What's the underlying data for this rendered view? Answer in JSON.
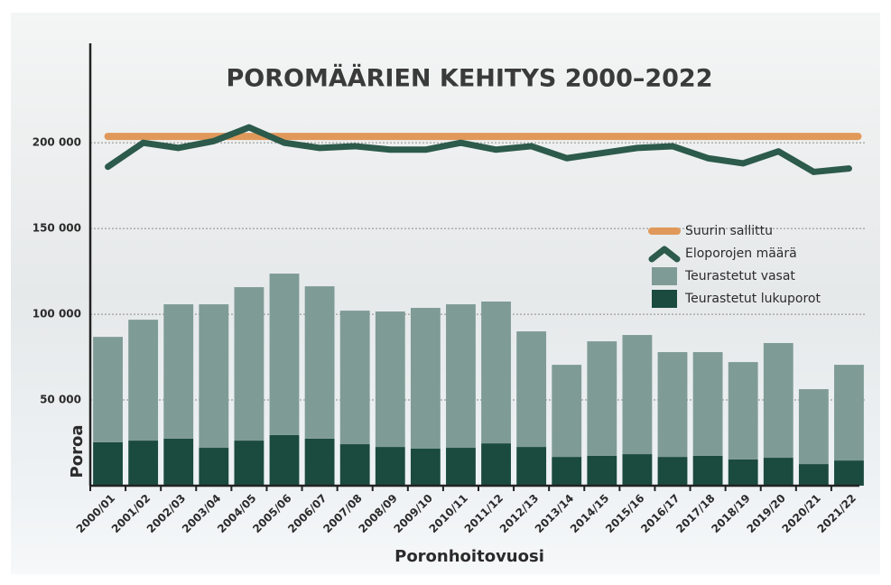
{
  "chart_data": {
    "type": "bar",
    "title": "POROMÄÄRIEN KEHITYS 2000–2022",
    "x_label": "Poronhoitovuosi",
    "y_label": "Poroa",
    "categories": [
      "2000/01",
      "2001/02",
      "2002/03",
      "2003/04",
      "2004/05",
      "2005/06",
      "2006/07",
      "2007/08",
      "2008/09",
      "2009/10",
      "2010/11",
      "2011/12",
      "2012/13",
      "2013/14",
      "2014/15",
      "2015/16",
      "2016/17",
      "2017/18",
      "2018/19",
      "2019/20",
      "2020/21",
      "2021/22"
    ],
    "series": [
      {
        "name": "Suurin sallittu",
        "type": "hline",
        "color": "#e0995a",
        "value": 203700
      },
      {
        "name": "Eloporojen määrä",
        "type": "line",
        "color": "#2c5a4b",
        "values": [
          186000,
          200000,
          197000,
          201000,
          209000,
          200000,
          197000,
          198000,
          196000,
          196000,
          200000,
          196000,
          198000,
          191000,
          194000,
          197000,
          198000,
          191000,
          188000,
          195000,
          183000,
          185000
        ]
      },
      {
        "name": "Teurastetut vasat",
        "type": "bar",
        "color": "#7f9b96",
        "values": [
          61500,
          70500,
          78400,
          83700,
          89500,
          94200,
          88900,
          77900,
          79000,
          82100,
          83700,
          82700,
          67400,
          53700,
          66800,
          69500,
          61100,
          60500,
          56800,
          66900,
          43700,
          55800
        ]
      },
      {
        "name": "Teurastetut lukuporot",
        "type": "bar",
        "color": "#1b4a3f",
        "values": [
          25300,
          26300,
          27400,
          22100,
          26300,
          29500,
          27400,
          24200,
          22600,
          21600,
          22100,
          24700,
          22600,
          16800,
          17400,
          18400,
          16800,
          17400,
          15300,
          16300,
          12600,
          14700
        ]
      }
    ],
    "ylim": [
      0,
      258000
    ],
    "yticks": [
      {
        "value": 50000,
        "label": "50 000"
      },
      {
        "value": 100000,
        "label": "100 000"
      },
      {
        "value": 150000,
        "label": "150 000"
      },
      {
        "value": 200000,
        "label": "200 000"
      }
    ],
    "grid": true
  }
}
